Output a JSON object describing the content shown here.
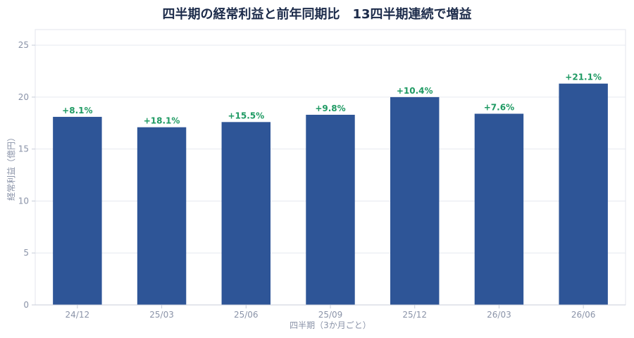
{
  "chart_data": {
    "type": "bar",
    "title": "四半期の経常利益と前年同期比　13四半期連続で増益",
    "xlabel": "四半期（3か月ごと）",
    "ylabel": "経常利益（億円）",
    "categories": [
      "24/12",
      "25/03",
      "25/06",
      "25/09",
      "25/12",
      "26/03",
      "26/06"
    ],
    "series": [
      {
        "values": [
          18.1,
          17.1,
          17.6,
          18.3,
          20.0,
          18.4,
          21.3
        ]
      }
    ],
    "data_labels": [
      "+8.1%",
      "+18.1%",
      "+15.5%",
      "+9.8%",
      "+10.4%",
      "+7.6%",
      "+21.1%"
    ],
    "ylim": [
      0,
      26.5
    ],
    "yticks": [
      0,
      5,
      10,
      15,
      20,
      25
    ],
    "grid": true,
    "colors": {
      "bar": "#2e5597",
      "label": "#1f9a63",
      "grid": "#e6e9f0",
      "axis": "#c8cdd9"
    }
  }
}
